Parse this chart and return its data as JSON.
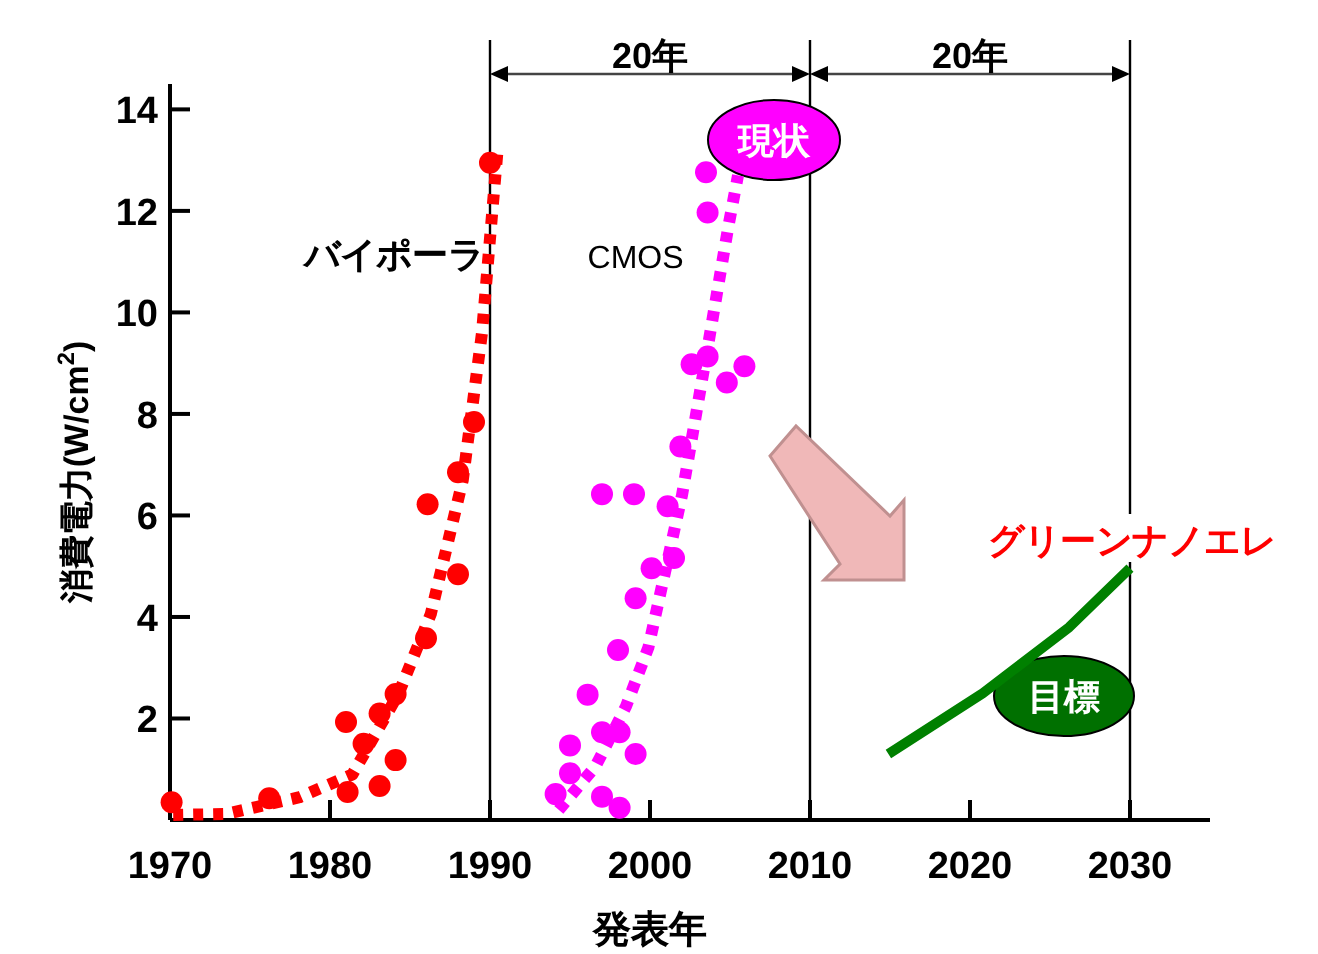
{
  "chart_data": {
    "type": "scatter",
    "xlabel": "発表年",
    "ylabel": "消費電力(W/cm$^{2}$)",
    "xlim": [
      1970,
      2035
    ],
    "ylim": [
      0,
      14.5
    ],
    "xticks": [
      1970,
      1980,
      1990,
      2000,
      2010,
      2020,
      2030
    ],
    "yticks": [
      2,
      4,
      6,
      8,
      10,
      12,
      14
    ],
    "grid": false,
    "series": [
      {
        "name": "バイポーラ",
        "marker": "circle",
        "color": "#ff0000",
        "x": [
          1970.1,
          1976.2,
          1981.0,
          1981.1,
          1982.1,
          1983.1,
          1983.1,
          1984.1,
          1984.1,
          1986.0,
          1986.1,
          1988.0,
          1988.0,
          1989.0,
          1990.0
        ],
        "values": [
          0.35,
          0.43,
          1.93,
          0.55,
          1.5,
          2.1,
          0.67,
          1.18,
          2.48,
          3.58,
          6.22,
          4.84,
          6.85,
          7.84,
          12.95
        ]
      },
      {
        "name": "CMOS",
        "marker": "circle",
        "color": "#ff00ff",
        "x": [
          1994.1,
          1995.0,
          1995.0,
          1996.1,
          1997.0,
          1997.0,
          1997.0,
          1998.0,
          1998.1,
          1998.1,
          1999.0,
          1999.1,
          1999.1,
          2000.1,
          2001.1,
          2001.5,
          2001.9,
          2002.6,
          2003.6,
          2004.8,
          2005.9,
          2003.6,
          2003.5
        ],
        "values": [
          0.51,
          1.47,
          0.92,
          2.47,
          6.42,
          1.73,
          0.46,
          3.35,
          1.73,
          0.24,
          6.42,
          4.37,
          1.3,
          4.96,
          6.18,
          5.16,
          7.36,
          8.98,
          9.13,
          8.62,
          8.94,
          11.97,
          12.76
        ]
      },
      {
        "type": "line",
        "marker": "none",
        "line_style": "dotted",
        "color": "#ff0000",
        "x": [
          1970.2,
          1973.5,
          1978.1,
          1981.4,
          1984.3,
          1986.3,
          1988.3,
          1989.5,
          1990.2,
          1990.5
        ],
        "values": [
          0.1,
          0.12,
          0.45,
          0.9,
          2.5,
          4.06,
          6.7,
          9.6,
          12.2,
          13.3
        ]
      },
      {
        "type": "line",
        "marker": "none",
        "line_style": "dotted",
        "color": "#ff00ff",
        "x": [
          1994.3,
          1996.6,
          1998.5,
          1999.9,
          2002.0,
          2003.6,
          2004.9,
          2005.5
        ],
        "values": [
          0.2,
          1.06,
          2.24,
          3.4,
          6.4,
          9.3,
          11.7,
          12.7
        ]
      },
      {
        "type": "line",
        "marker": "none",
        "line_style": "solid",
        "color": "#008000",
        "x": [
          2014.9,
          2020.8,
          2026.2,
          2030.0
        ],
        "values": [
          1.3,
          2.5,
          3.8,
          4.96
        ]
      }
    ],
    "ref_lines": [
      {
        "axis": "x",
        "value": 1990,
        "color": "#000000"
      },
      {
        "axis": "x",
        "value": 2010,
        "color": "#000000"
      },
      {
        "axis": "x",
        "value": 2030,
        "color": "#000000"
      }
    ],
    "annotations": [
      "20年",
      "20年",
      "現状",
      "グリーンナノエレ",
      "目標"
    ]
  }
}
